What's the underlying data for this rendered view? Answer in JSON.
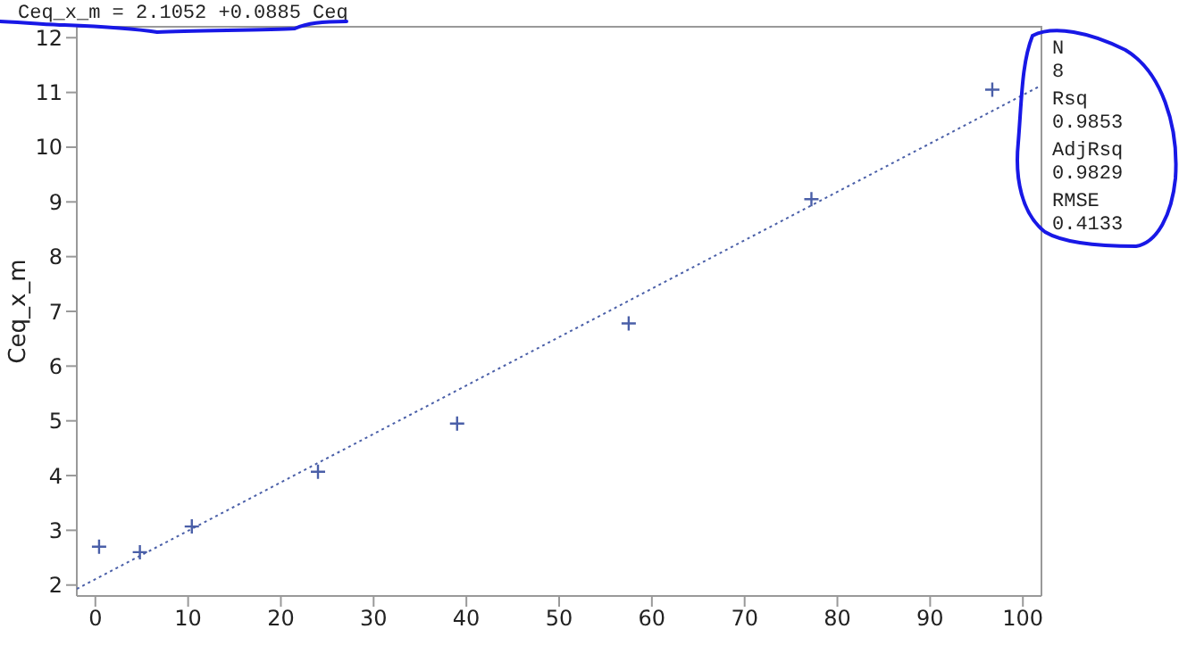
{
  "chart_data": {
    "type": "scatter",
    "title": "Ceq_x_m = 2.1052 +0.0885 Ceq",
    "ylabel": "Ceq_x_m",
    "annotations": [
      "N",
      "8",
      "Rsq",
      "0.9853",
      "AdjRsq",
      "0.9829",
      "RMSE",
      "0.4133"
    ],
    "xlim": [
      -2,
      102
    ],
    "xticks": [
      0,
      10,
      20,
      30,
      40,
      50,
      60,
      70,
      80,
      90,
      100
    ],
    "ylim": [
      1.8,
      12.2
    ],
    "yticks": [
      2,
      3,
      4,
      5,
      6,
      7,
      8,
      9,
      10,
      11,
      12
    ],
    "grid": false,
    "series": [
      {
        "type": "scatter",
        "marker": "cross",
        "color": "#4a5fa8",
        "x": [
          0.4,
          4.8,
          10.4,
          24,
          39,
          57.5,
          77.2,
          96.7
        ],
        "values": [
          2.7,
          2.6,
          3.07,
          4.07,
          4.95,
          6.78,
          9.05,
          11.05
        ]
      },
      {
        "type": "line",
        "marker": "none",
        "line_style": "dotted",
        "color": "#4a5fa8",
        "x": [
          -2,
          102
        ],
        "values": [
          1.93,
          11.13
        ]
      }
    ]
  }
}
